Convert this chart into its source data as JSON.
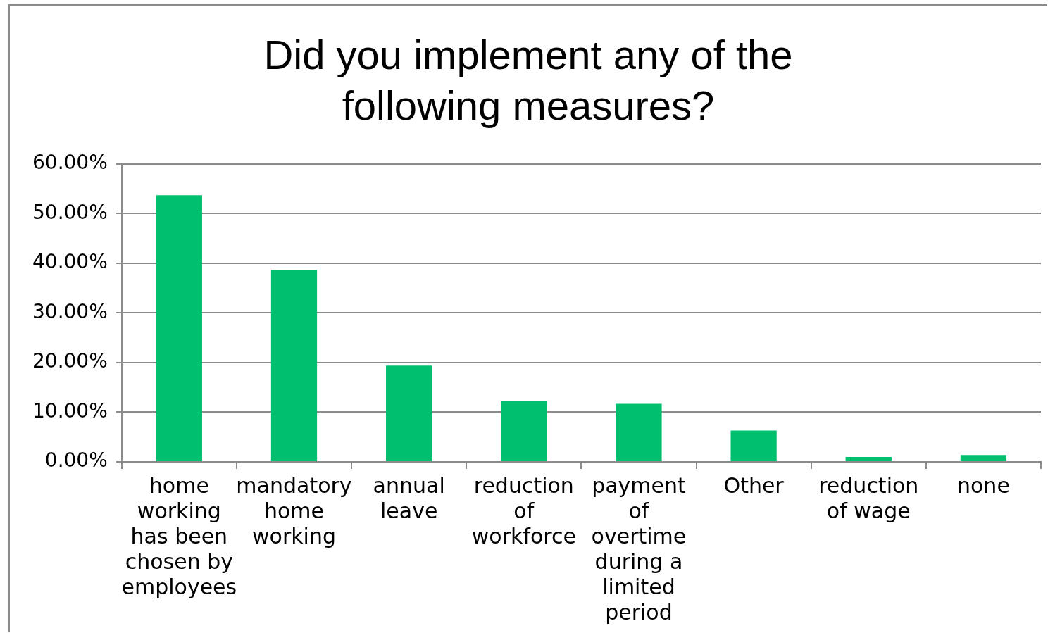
{
  "chart_data": {
    "type": "bar",
    "title": "Did you implement any of the following measures?",
    "categories": [
      "home working has been chosen by employees",
      "mandatory home working",
      "annual leave",
      "reduction of workforce",
      "payment of overtime during a limited period",
      "Other",
      "reduction of wage",
      "none"
    ],
    "values": [
      53.7,
      38.7,
      19.4,
      12.2,
      11.7,
      6.3,
      1.0,
      1.4
    ],
    "color": "#00c06f",
    "ylim": [
      0,
      60
    ],
    "yticks": [
      {
        "value": 0,
        "label": "0.00%"
      },
      {
        "value": 10,
        "label": "10.00%"
      },
      {
        "value": 20,
        "label": "20.00%"
      },
      {
        "value": 30,
        "label": "30.00%"
      },
      {
        "value": 40,
        "label": "40.00%"
      },
      {
        "value": 50,
        "label": "50.00%"
      },
      {
        "value": 60,
        "label": "60.00%"
      }
    ],
    "grid": "y",
    "legend": false
  }
}
